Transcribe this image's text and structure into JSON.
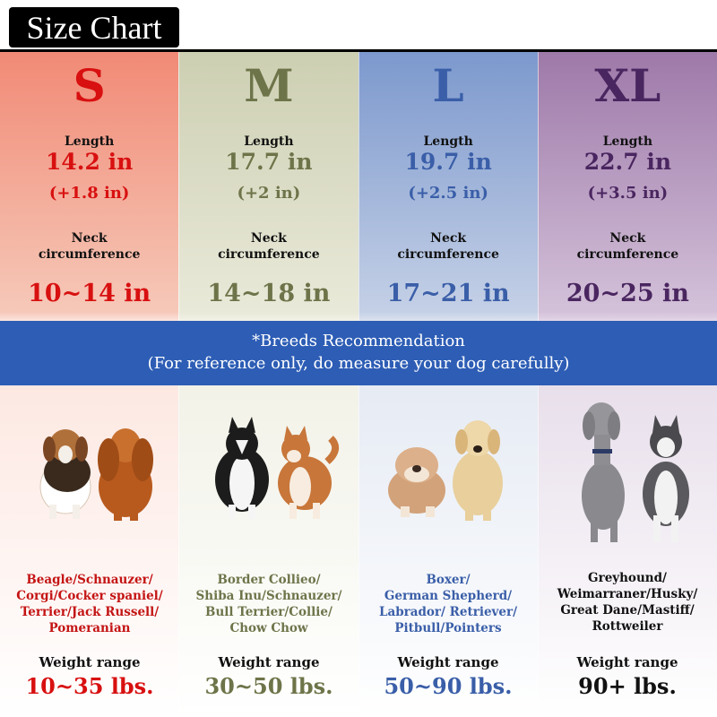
{
  "title": "Size Chart",
  "labels": {
    "length": "Length",
    "neck_line1": "Neck",
    "neck_line2": "circumference",
    "weight": "Weight range"
  },
  "colors": {
    "s": "#d81010",
    "m": "#6e7449",
    "l": "#3a5ea8",
    "xl": "#4a2660",
    "band": "#2d5db5"
  },
  "sizes": [
    {
      "size": "S",
      "length": "14.2 in",
      "length_add": "(+1.8 in)",
      "neck": "10~14 in",
      "breeds": [
        "Beagle/Schnauzer/",
        "Corgi/Cocker spaniel/",
        "Terrier/Jack Russell/",
        "Pomeranian"
      ],
      "weight": "10~35 lbs."
    },
    {
      "size": "M",
      "length": "17.7 in",
      "length_add": "(+2 in)",
      "neck": "14~18 in",
      "breeds": [
        "Border Collieo/",
        "Shiba Inu/Schnauzer/",
        "Bull Terrier/Collie/",
        "Chow Chow"
      ],
      "weight": "30~50 lbs."
    },
    {
      "size": "L",
      "length": "19.7 in",
      "length_add": "(+2.5 in)",
      "neck": "17~21 in",
      "breeds": [
        "Boxer/",
        "German Shepherd/",
        "Labrador/ Retriever/",
        "Pitbull/Pointers"
      ],
      "weight": "50~90 lbs."
    },
    {
      "size": "XL",
      "length": "22.7 in",
      "length_add": "(+3.5 in)",
      "neck": "20~25 in",
      "breeds": [
        "Greyhound/",
        "Weimarraner/Husky/",
        "Great Dane/Mastiff/",
        "Rottweiler"
      ],
      "weight": "90+ lbs."
    }
  ],
  "banner": {
    "line1": "*Breeds Recommendation",
    "line2": "(For reference only, do measure your dog carefully)"
  }
}
